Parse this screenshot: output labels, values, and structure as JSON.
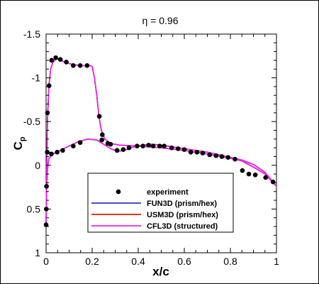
{
  "chart_data": {
    "type": "line",
    "title": "η = 0.96",
    "xlabel": "x/c",
    "ylabel": "C",
    "ylabel_subscript": "p",
    "xlim": [
      0,
      1
    ],
    "ylim": [
      -1.5,
      1
    ],
    "y_inverted": true,
    "x_ticks": [
      0,
      0.2,
      0.4,
      0.6,
      0.8,
      1
    ],
    "x_tick_labels": [
      "0",
      "0.2",
      "0.4",
      "0.6",
      "0.8",
      "1"
    ],
    "y_ticks": [
      -1.5,
      -1,
      -0.5,
      0,
      0.5,
      1
    ],
    "y_tick_labels": [
      "-1.5",
      "-1",
      "-0.5",
      "0",
      "0.5",
      "1"
    ],
    "grid": false,
    "legend_position": "bottom-center",
    "series": [
      {
        "name": "experiment",
        "kind": "markers",
        "color": "#000000",
        "points": [
          [
            0.0,
            0.68
          ],
          [
            0.001,
            0.5
          ],
          [
            0.002,
            0.24
          ],
          [
            0.006,
            -0.6
          ],
          [
            0.013,
            -0.91
          ],
          [
            0.024,
            -1.2
          ],
          [
            0.042,
            -1.23
          ],
          [
            0.062,
            -1.21
          ],
          [
            0.088,
            -1.18
          ],
          [
            0.118,
            -1.14
          ],
          [
            0.148,
            -1.14
          ],
          [
            0.178,
            -1.14
          ],
          [
            0.231,
            -0.56
          ],
          [
            0.244,
            -0.35
          ],
          [
            0.28,
            -0.24
          ],
          [
            0.005,
            -0.15
          ],
          [
            0.023,
            -0.13
          ],
          [
            0.048,
            -0.15
          ],
          [
            0.072,
            -0.17
          ],
          [
            0.118,
            -0.22
          ],
          [
            0.148,
            -0.26
          ],
          [
            0.242,
            -0.29
          ],
          [
            0.268,
            -0.25
          ],
          [
            0.308,
            -0.17
          ],
          [
            0.335,
            -0.18
          ],
          [
            0.36,
            -0.2
          ],
          [
            0.395,
            -0.22
          ],
          [
            0.42,
            -0.22
          ],
          [
            0.445,
            -0.23
          ],
          [
            0.465,
            -0.22
          ],
          [
            0.493,
            -0.22
          ],
          [
            0.513,
            -0.22
          ],
          [
            0.545,
            -0.2
          ],
          [
            0.573,
            -0.19
          ],
          [
            0.6,
            -0.18
          ],
          [
            0.628,
            -0.15
          ],
          [
            0.655,
            -0.15
          ],
          [
            0.68,
            -0.14
          ],
          [
            0.71,
            -0.12
          ],
          [
            0.738,
            -0.11
          ],
          [
            0.763,
            -0.1
          ],
          [
            0.79,
            -0.09
          ],
          [
            0.82,
            -0.07
          ],
          [
            0.852,
            0.06
          ],
          [
            0.88,
            0.1
          ],
          [
            0.908,
            0.11
          ],
          [
            0.953,
            0.14
          ],
          [
            0.985,
            0.19
          ]
        ]
      },
      {
        "name": "FUN3D (prism/hex)",
        "kind": "line",
        "color": "#3333cc",
        "upper": [
          [
            0.0,
            0.7
          ],
          [
            0.001,
            0.5
          ],
          [
            0.003,
            0.0
          ],
          [
            0.006,
            -0.5
          ],
          [
            0.012,
            -0.9
          ],
          [
            0.02,
            -1.1
          ],
          [
            0.03,
            -1.18
          ],
          [
            0.045,
            -1.22
          ],
          [
            0.065,
            -1.2
          ],
          [
            0.09,
            -1.17
          ],
          [
            0.12,
            -1.15
          ],
          [
            0.15,
            -1.14
          ],
          [
            0.175,
            -1.14
          ],
          [
            0.19,
            -1.14
          ],
          [
            0.2,
            -1.13
          ],
          [
            0.21,
            -1.0
          ],
          [
            0.22,
            -0.8
          ],
          [
            0.23,
            -0.55
          ],
          [
            0.24,
            -0.4
          ],
          [
            0.255,
            -0.3
          ],
          [
            0.28,
            -0.25
          ],
          [
            0.32,
            -0.23
          ],
          [
            0.4,
            -0.22
          ],
          [
            0.5,
            -0.2
          ],
          [
            0.6,
            -0.17
          ],
          [
            0.7,
            -0.13
          ],
          [
            0.8,
            -0.08
          ],
          [
            0.85,
            -0.05
          ],
          [
            0.9,
            0.02
          ],
          [
            0.95,
            0.1
          ],
          [
            1.0,
            0.24
          ]
        ],
        "lower": [
          [
            0.0,
            0.7
          ],
          [
            0.002,
            0.3
          ],
          [
            0.006,
            0.05
          ],
          [
            0.012,
            -0.08
          ],
          [
            0.03,
            -0.13
          ],
          [
            0.06,
            -0.17
          ],
          [
            0.1,
            -0.22
          ],
          [
            0.14,
            -0.27
          ],
          [
            0.18,
            -0.3
          ],
          [
            0.22,
            -0.29
          ],
          [
            0.25,
            -0.24
          ],
          [
            0.28,
            -0.19
          ],
          [
            0.31,
            -0.16
          ],
          [
            0.34,
            -0.17
          ],
          [
            0.38,
            -0.21
          ],
          [
            0.42,
            -0.23
          ],
          [
            0.46,
            -0.24
          ],
          [
            0.5,
            -0.23
          ],
          [
            0.55,
            -0.21
          ],
          [
            0.6,
            -0.19
          ],
          [
            0.65,
            -0.17
          ],
          [
            0.7,
            -0.15
          ],
          [
            0.75,
            -0.12
          ],
          [
            0.8,
            -0.09
          ],
          [
            0.85,
            -0.06
          ],
          [
            0.9,
            -0.01
          ],
          [
            0.95,
            0.08
          ],
          [
            1.0,
            0.24
          ]
        ]
      },
      {
        "name": "USM3D (prism/hex)",
        "kind": "line",
        "color": "#cc2200",
        "upper": [
          [
            0.0,
            0.7
          ],
          [
            0.001,
            0.5
          ],
          [
            0.003,
            0.0
          ],
          [
            0.006,
            -0.5
          ],
          [
            0.012,
            -0.9
          ],
          [
            0.02,
            -1.1
          ],
          [
            0.03,
            -1.18
          ],
          [
            0.045,
            -1.22
          ],
          [
            0.065,
            -1.2
          ],
          [
            0.09,
            -1.17
          ],
          [
            0.12,
            -1.15
          ],
          [
            0.15,
            -1.14
          ],
          [
            0.175,
            -1.14
          ],
          [
            0.19,
            -1.14
          ],
          [
            0.2,
            -1.13
          ],
          [
            0.21,
            -1.0
          ],
          [
            0.22,
            -0.8
          ],
          [
            0.23,
            -0.55
          ],
          [
            0.24,
            -0.4
          ],
          [
            0.255,
            -0.3
          ],
          [
            0.28,
            -0.25
          ],
          [
            0.32,
            -0.23
          ],
          [
            0.4,
            -0.22
          ],
          [
            0.5,
            -0.2
          ],
          [
            0.6,
            -0.17
          ],
          [
            0.7,
            -0.13
          ],
          [
            0.8,
            -0.08
          ],
          [
            0.85,
            -0.05
          ],
          [
            0.9,
            0.02
          ],
          [
            0.95,
            0.1
          ],
          [
            1.0,
            0.24
          ]
        ],
        "lower": [
          [
            0.0,
            0.7
          ],
          [
            0.002,
            0.3
          ],
          [
            0.006,
            0.05
          ],
          [
            0.012,
            -0.08
          ],
          [
            0.03,
            -0.13
          ],
          [
            0.06,
            -0.17
          ],
          [
            0.1,
            -0.22
          ],
          [
            0.14,
            -0.27
          ],
          [
            0.18,
            -0.3
          ],
          [
            0.22,
            -0.29
          ],
          [
            0.25,
            -0.24
          ],
          [
            0.28,
            -0.19
          ],
          [
            0.31,
            -0.16
          ],
          [
            0.34,
            -0.17
          ],
          [
            0.38,
            -0.21
          ],
          [
            0.42,
            -0.23
          ],
          [
            0.46,
            -0.24
          ],
          [
            0.5,
            -0.23
          ],
          [
            0.55,
            -0.21
          ],
          [
            0.6,
            -0.19
          ],
          [
            0.65,
            -0.17
          ],
          [
            0.7,
            -0.15
          ],
          [
            0.75,
            -0.12
          ],
          [
            0.8,
            -0.09
          ],
          [
            0.85,
            -0.06
          ],
          [
            0.9,
            -0.01
          ],
          [
            0.95,
            0.08
          ],
          [
            1.0,
            0.24
          ]
        ]
      },
      {
        "name": "CFL3D (structured)",
        "kind": "line",
        "color": "#ee22ee",
        "upper": [
          [
            0.0,
            0.7
          ],
          [
            0.001,
            0.5
          ],
          [
            0.003,
            0.0
          ],
          [
            0.006,
            -0.5
          ],
          [
            0.012,
            -0.9
          ],
          [
            0.02,
            -1.1
          ],
          [
            0.03,
            -1.18
          ],
          [
            0.045,
            -1.22
          ],
          [
            0.065,
            -1.2
          ],
          [
            0.09,
            -1.17
          ],
          [
            0.12,
            -1.15
          ],
          [
            0.15,
            -1.14
          ],
          [
            0.175,
            -1.14
          ],
          [
            0.19,
            -1.14
          ],
          [
            0.2,
            -1.13
          ],
          [
            0.21,
            -1.0
          ],
          [
            0.22,
            -0.8
          ],
          [
            0.23,
            -0.55
          ],
          [
            0.24,
            -0.4
          ],
          [
            0.255,
            -0.3
          ],
          [
            0.28,
            -0.25
          ],
          [
            0.32,
            -0.23
          ],
          [
            0.4,
            -0.22
          ],
          [
            0.5,
            -0.2
          ],
          [
            0.6,
            -0.17
          ],
          [
            0.7,
            -0.13
          ],
          [
            0.8,
            -0.08
          ],
          [
            0.85,
            -0.05
          ],
          [
            0.9,
            0.02
          ],
          [
            0.95,
            0.1
          ],
          [
            1.0,
            0.24
          ]
        ],
        "lower": [
          [
            0.0,
            0.7
          ],
          [
            0.002,
            0.3
          ],
          [
            0.006,
            0.05
          ],
          [
            0.012,
            -0.08
          ],
          [
            0.03,
            -0.13
          ],
          [
            0.06,
            -0.17
          ],
          [
            0.1,
            -0.22
          ],
          [
            0.14,
            -0.27
          ],
          [
            0.18,
            -0.3
          ],
          [
            0.22,
            -0.29
          ],
          [
            0.25,
            -0.24
          ],
          [
            0.28,
            -0.19
          ],
          [
            0.31,
            -0.16
          ],
          [
            0.34,
            -0.17
          ],
          [
            0.38,
            -0.21
          ],
          [
            0.42,
            -0.23
          ],
          [
            0.46,
            -0.24
          ],
          [
            0.5,
            -0.23
          ],
          [
            0.55,
            -0.21
          ],
          [
            0.6,
            -0.19
          ],
          [
            0.65,
            -0.17
          ],
          [
            0.7,
            -0.15
          ],
          [
            0.75,
            -0.12
          ],
          [
            0.8,
            -0.09
          ],
          [
            0.85,
            -0.06
          ],
          [
            0.9,
            -0.01
          ],
          [
            0.95,
            0.08
          ],
          [
            1.0,
            0.24
          ]
        ]
      }
    ]
  }
}
